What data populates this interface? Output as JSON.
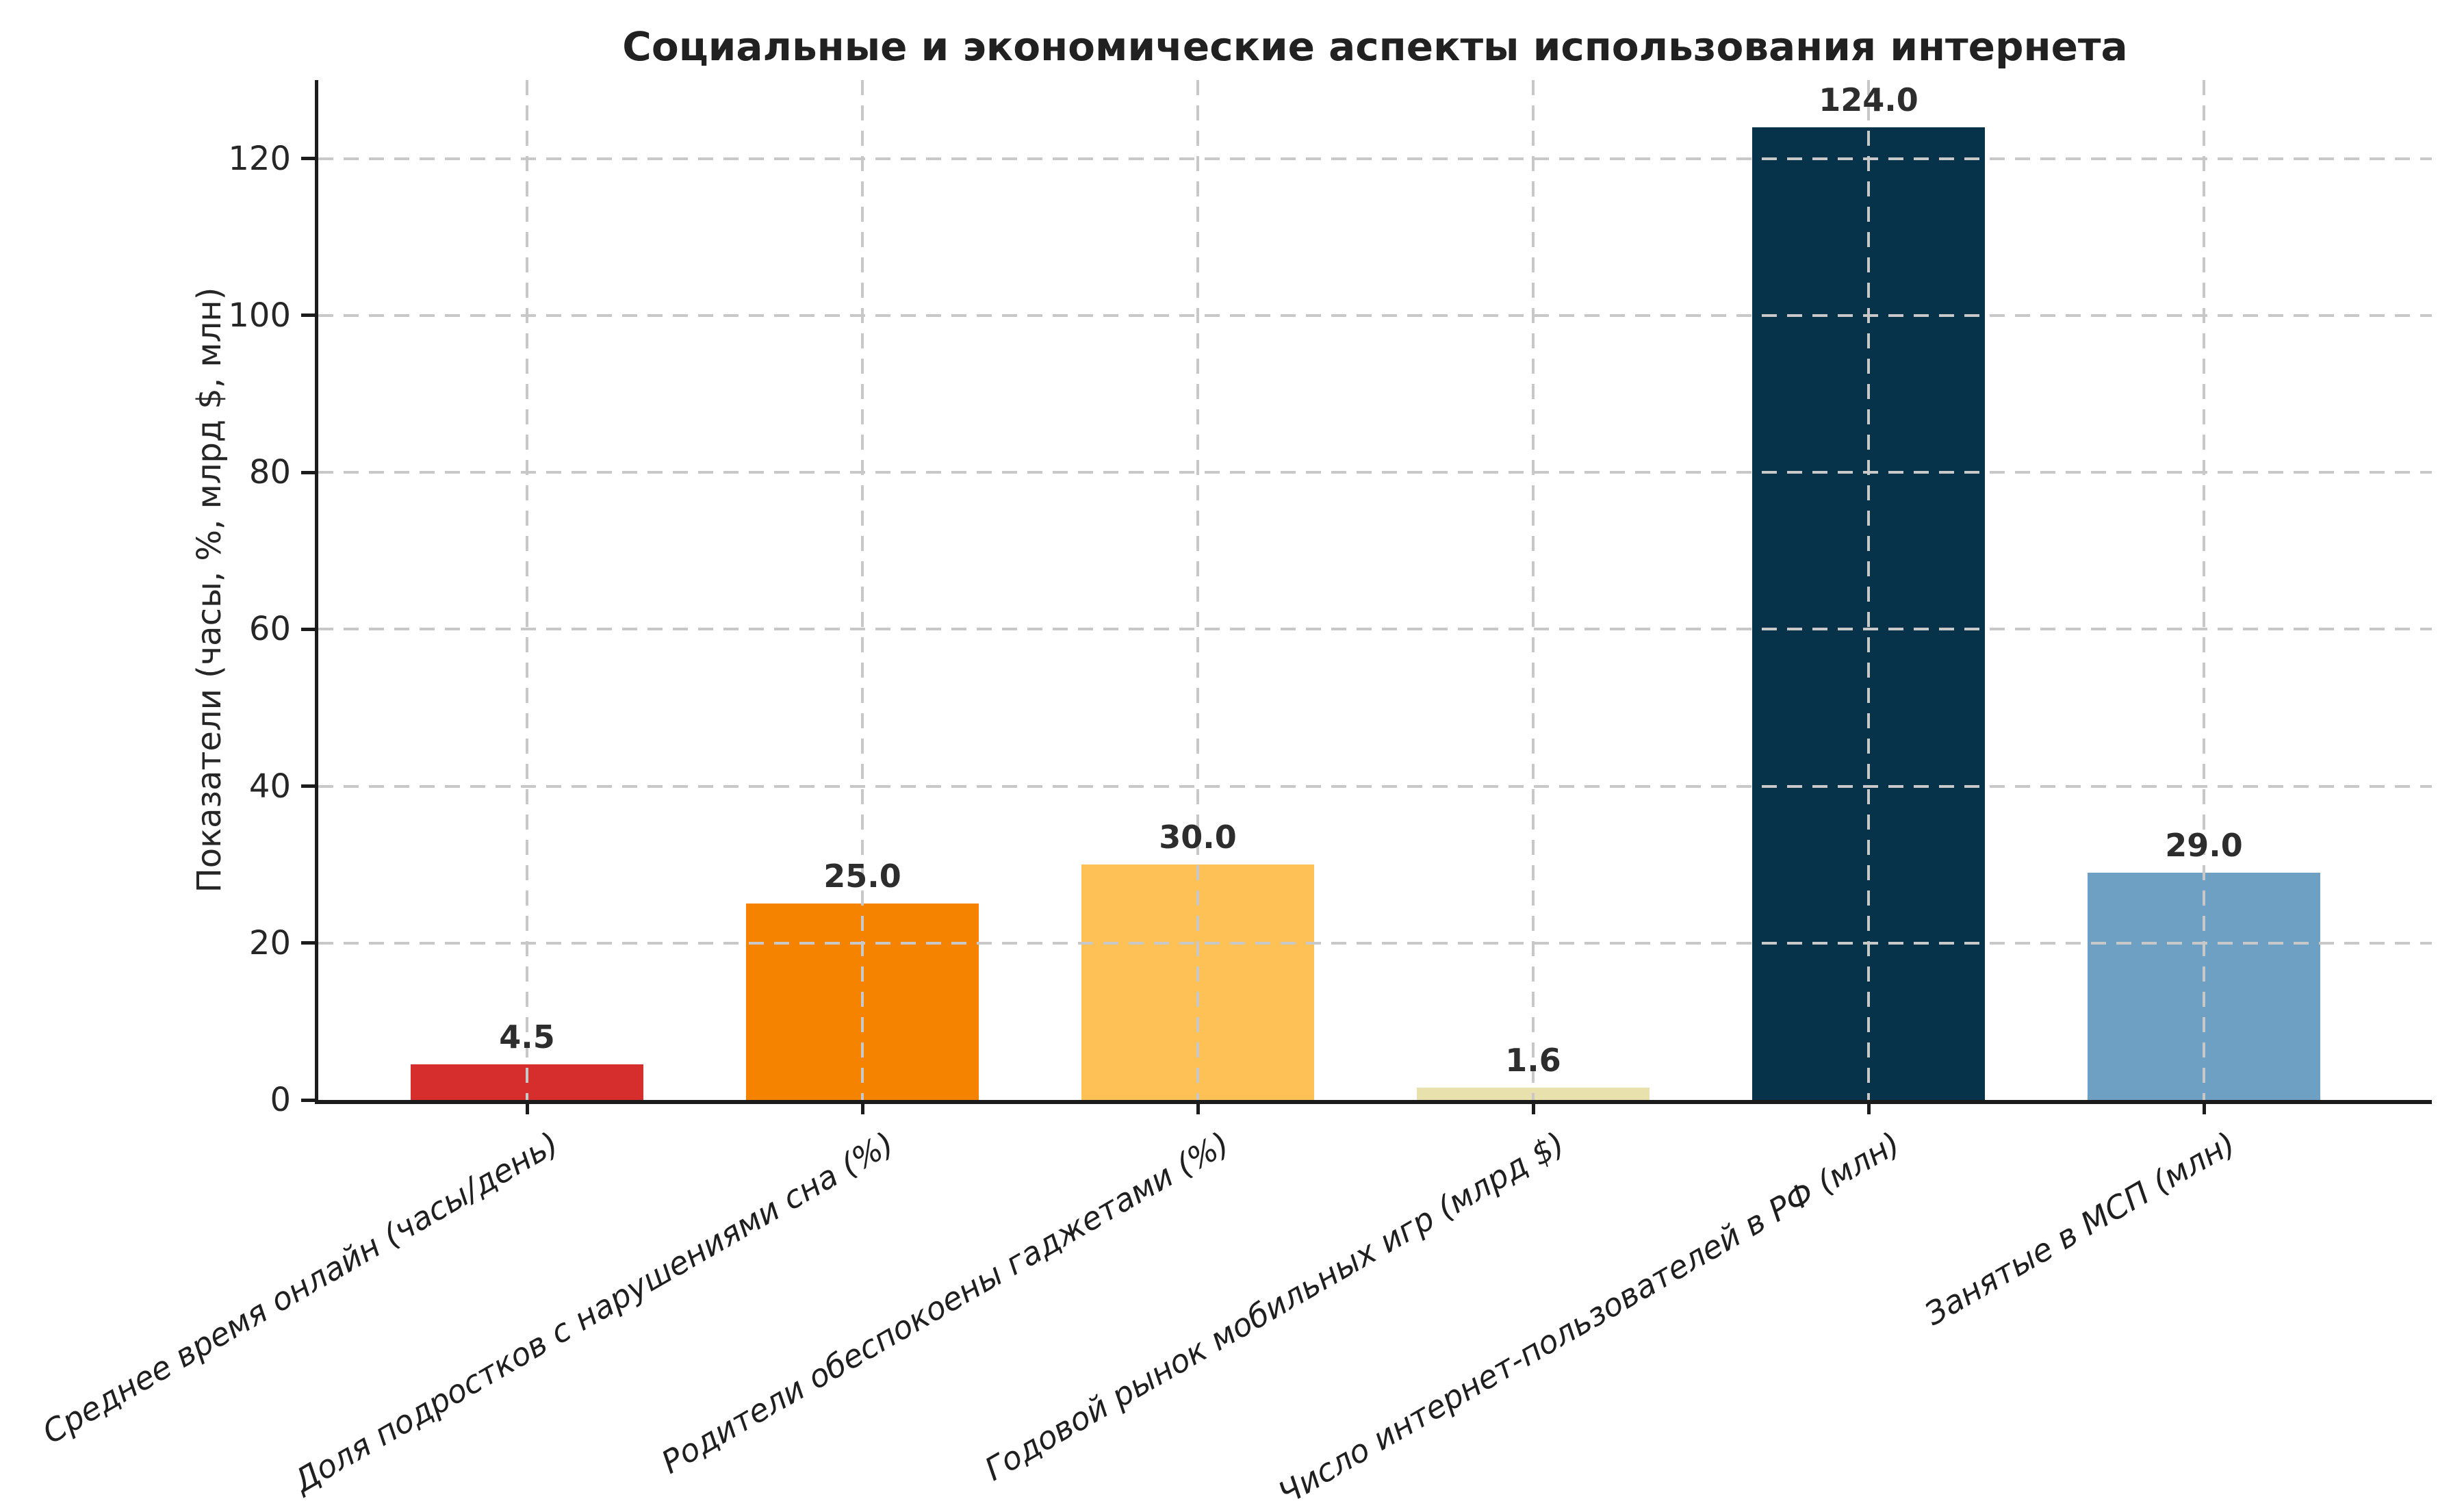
{
  "chart_data": {
    "type": "bar",
    "title": "Социальные и экономические аспекты использования интернета",
    "ylabel": "Показатели (часы, %, млрд $, млн)",
    "xlabel": "",
    "categories": [
      "Среднее время онлайн (часы/день)",
      "Доля подростков с нарушениями сна (%)",
      "Родители обеспокоены гаджетами (%)",
      "Годовой рынок мобильных игр (млрд $)",
      "Число интернет-пользователей в РФ (млн)",
      "Занятые в МСП (млн)"
    ],
    "values": [
      4.5,
      25.0,
      30.0,
      1.6,
      124.0,
      29.0
    ],
    "value_labels": [
      "4.5",
      "25.0",
      "30.0",
      "1.6",
      "124.0",
      "29.0"
    ],
    "bar_colors": [
      "#d62e2c",
      "#f58300",
      "#fdc155",
      "#e8e1ae",
      "#063349",
      "#6da0c2"
    ],
    "yticks": [
      0,
      20,
      40,
      60,
      80,
      100,
      120
    ],
    "ylim": [
      0,
      130
    ],
    "grid": "dashed gray gridlines on both axes, drawn over bars",
    "legend": "none",
    "x_tick_label_style": "italic, rotated 30 degrees, right-anchored"
  },
  "colors": {
    "background": "#ffffff",
    "spine": "#1c1c1c",
    "grid": "#c8c8c8",
    "text": "#262626"
  }
}
